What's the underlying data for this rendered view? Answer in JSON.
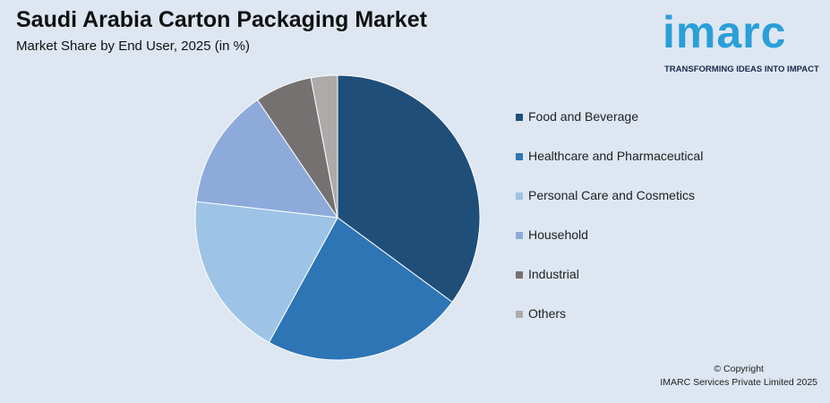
{
  "header": {
    "title": "Saudi Arabia Carton Packaging Market",
    "subtitle": "Market Share by End User, 2025 (in %)"
  },
  "logo": {
    "word": "imarc",
    "tagline": "TRANSFORMING IDEAS INTO IMPACT"
  },
  "footer": {
    "line1": "© Copyright",
    "line2": "IMARC Services Private Limited 2025"
  },
  "chart_data": {
    "type": "pie",
    "title": "Saudi Arabia Carton Packaging Market",
    "subtitle": "Market Share by End User, 2025 (in %)",
    "legend_position": "right",
    "start_angle_deg": 0,
    "direction": "clockwise",
    "series": [
      {
        "name": "Food and Beverage",
        "value": 35.1,
        "color": "#1f4e79"
      },
      {
        "name": "Healthcare and Pharmaceutical",
        "value": 22.9,
        "color": "#2e75b6"
      },
      {
        "name": "Personal Care and Cosmetics",
        "value": 18.8,
        "color": "#9dc3e6"
      },
      {
        "name": "Household",
        "value": 13.7,
        "color": "#8eaadb"
      },
      {
        "name": "Industrial",
        "value": 6.5,
        "color": "#767171"
      },
      {
        "name": "Others",
        "value": 3.0,
        "color": "#aeaaaa"
      }
    ]
  }
}
